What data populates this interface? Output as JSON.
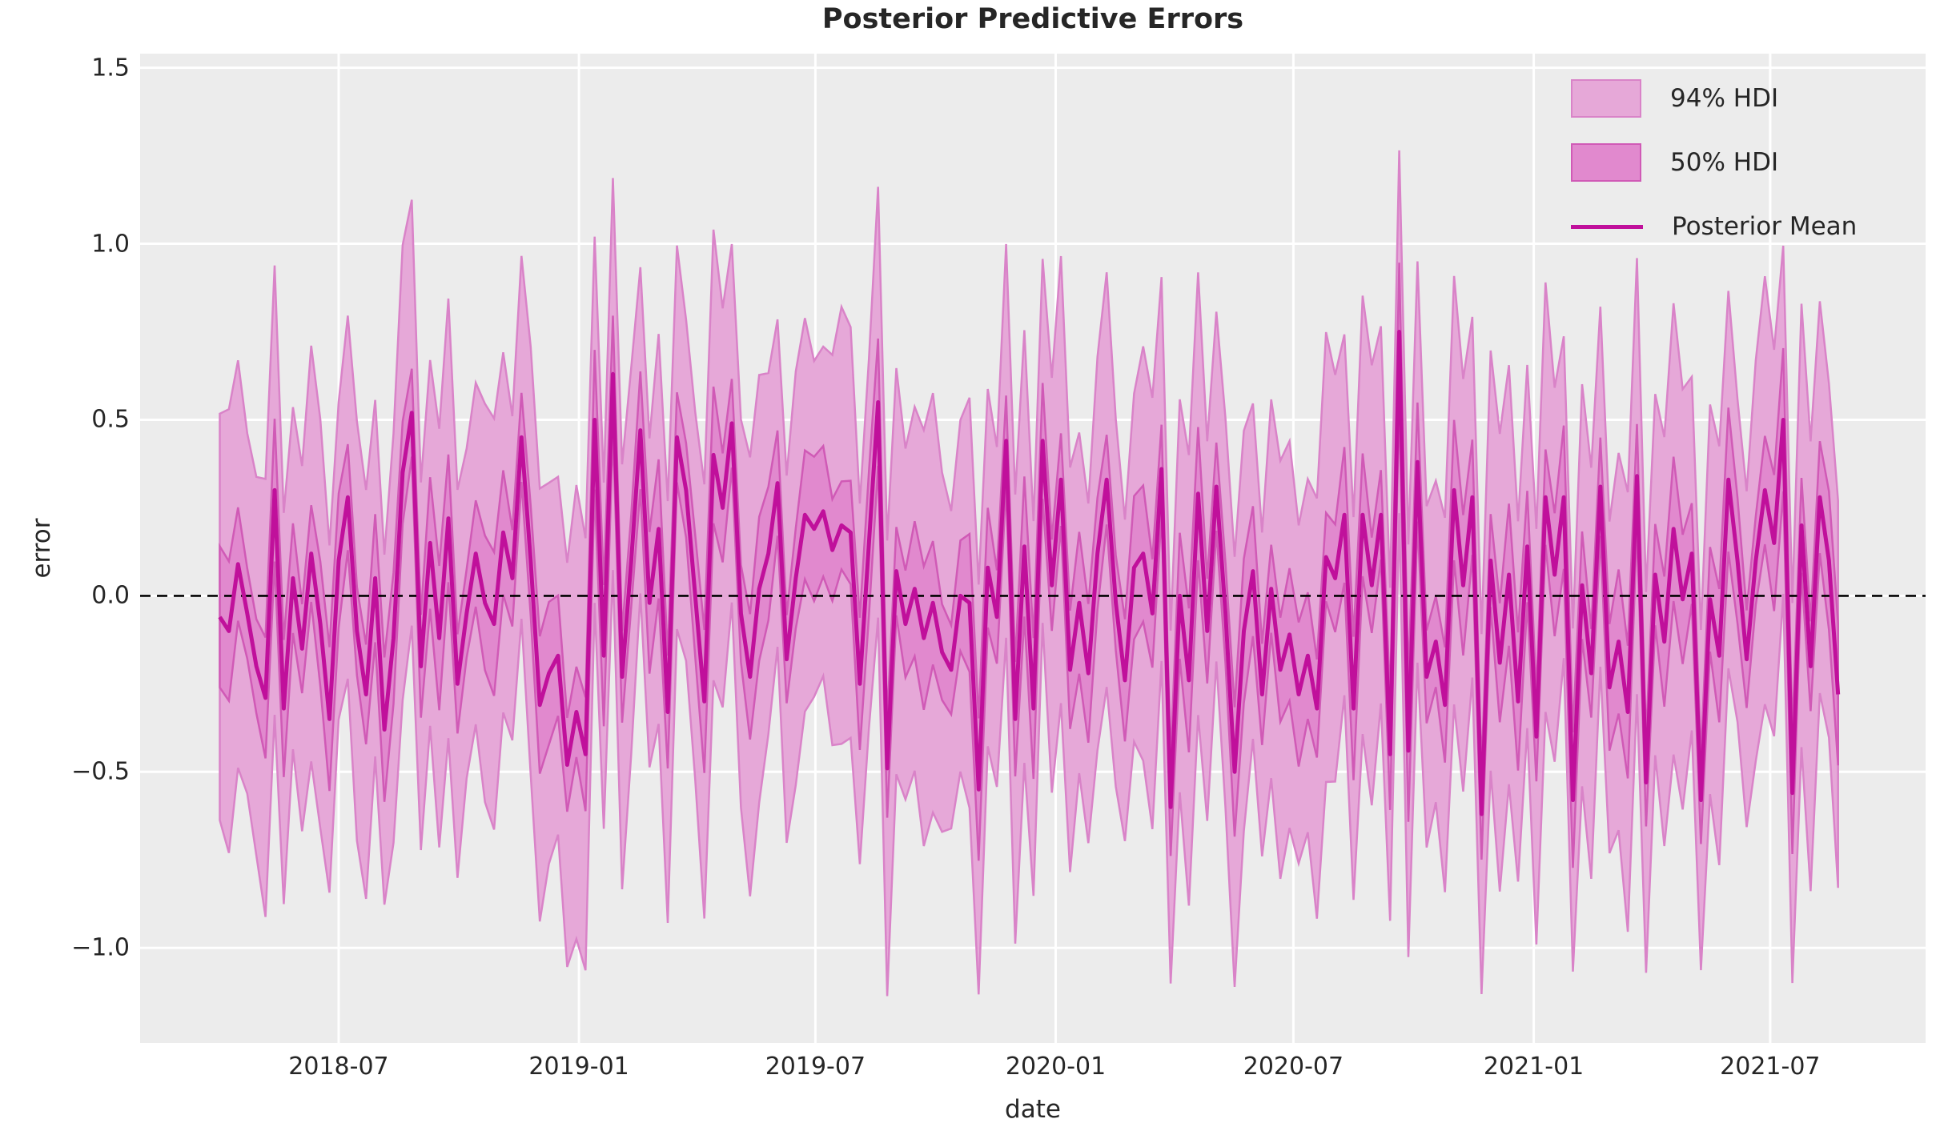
{
  "figure": {
    "title": "Posterior Predictive Errors",
    "xlabel": "date",
    "ylabel": "error"
  },
  "legend": {
    "hdi94_label": "94% HDI",
    "hdi50_label": "50% HDI",
    "mean_label": "Posterior Mean"
  },
  "chart_data": {
    "type": "line",
    "title": "Posterior Predictive Errors",
    "xlabel": "date",
    "ylabel": "error",
    "grid": true,
    "legend_position": "upper right",
    "legend_entries": [
      "94% HDI",
      "50% HDI",
      "Posterior Mean"
    ],
    "x_start_date": "2018-04-01",
    "x_freq_days": 7,
    "xlim": [
      "2018-01-30",
      "2021-10-28"
    ],
    "ylim": [
      -1.27,
      1.54
    ],
    "yticks": [
      {
        "value": 1.5,
        "label": "1.5"
      },
      {
        "value": 1.0,
        "label": "1.0"
      },
      {
        "value": 0.5,
        "label": "0.5"
      },
      {
        "value": 0.0,
        "label": "0.0"
      },
      {
        "value": -0.5,
        "label": "−0.5"
      },
      {
        "value": -1.0,
        "label": "−1.0"
      }
    ],
    "xticks": [
      {
        "date": "2018-07-01",
        "label": "2018-07"
      },
      {
        "date": "2019-01-01",
        "label": "2019-01"
      },
      {
        "date": "2019-07-01",
        "label": "2019-07"
      },
      {
        "date": "2020-01-01",
        "label": "2020-01"
      },
      {
        "date": "2020-07-01",
        "label": "2020-07"
      },
      {
        "date": "2021-01-01",
        "label": "2021-01"
      },
      {
        "date": "2021-07-01",
        "label": "2021-07"
      }
    ],
    "zero_line": {
      "value": 0.0,
      "style": "dashed",
      "color": "#000000"
    },
    "series": [
      {
        "name": "Posterior Mean",
        "values": [
          -0.06,
          -0.1,
          0.09,
          -0.05,
          -0.2,
          -0.29,
          0.3,
          -0.32,
          0.05,
          -0.15,
          0.12,
          -0.08,
          -0.35,
          0.1,
          0.28,
          -0.1,
          -0.28,
          0.05,
          -0.38,
          -0.12,
          0.35,
          0.52,
          -0.2,
          0.15,
          -0.12,
          0.22,
          -0.25,
          -0.05,
          0.12,
          -0.02,
          -0.08,
          0.18,
          0.05,
          0.45,
          0.1,
          -0.31,
          -0.22,
          -0.17,
          -0.48,
          -0.33,
          -0.45,
          0.5,
          -0.17,
          0.63,
          -0.23,
          0.1,
          0.47,
          -0.02,
          0.19,
          -0.33,
          0.45,
          0.3,
          0.0,
          -0.3,
          0.4,
          0.25,
          0.49,
          -0.05,
          -0.23,
          0.02,
          0.12,
          0.32,
          -0.18,
          0.05,
          0.23,
          0.19,
          0.24,
          0.13,
          0.2,
          0.18,
          -0.25,
          0.15,
          0.55,
          -0.49,
          0.07,
          -0.08,
          0.02,
          -0.12,
          -0.02,
          -0.16,
          -0.21,
          0.0,
          -0.02,
          -0.55,
          0.08,
          -0.06,
          0.44,
          -0.35,
          0.14,
          -0.32,
          0.44,
          0.03,
          0.33,
          -0.21,
          -0.02,
          -0.22,
          0.12,
          0.33,
          -0.02,
          -0.24,
          0.08,
          0.12,
          -0.05,
          0.36,
          -0.6,
          0.0,
          -0.24,
          0.29,
          -0.1,
          0.31,
          -0.05,
          -0.5,
          -0.1,
          0.07,
          -0.28,
          0.02,
          -0.21,
          -0.11,
          -0.28,
          -0.17,
          -0.32,
          0.11,
          0.05,
          0.23,
          -0.32,
          0.23,
          0.03,
          0.23,
          -0.45,
          0.75,
          -0.44,
          0.38,
          -0.23,
          -0.13,
          -0.31,
          0.3,
          0.03,
          0.28,
          -0.62,
          0.1,
          -0.19,
          0.06,
          -0.3,
          0.14,
          -0.4,
          0.28,
          0.06,
          0.28,
          -0.58,
          0.03,
          -0.22,
          0.31,
          -0.26,
          -0.13,
          -0.33,
          0.34,
          -0.53,
          0.06,
          -0.13,
          0.19,
          -0.01,
          0.12,
          -0.58,
          -0.01,
          -0.17,
          0.33,
          0.1,
          -0.18,
          0.1,
          0.3,
          0.15,
          0.5,
          -0.56,
          0.2,
          -0.2,
          0.28,
          0.1,
          -0.28
        ]
      }
    ],
    "hdi94_halfwidth": 0.55,
    "hdi94_wobble": 0.07,
    "hdi50_halfwidth": 0.165,
    "hdi50_wobble": 0.04,
    "colors": {
      "axes_bg": "#ececec",
      "figure_bg": "#ffffff",
      "grid": "#ffffff",
      "text": "#262626",
      "mean_line": "#c0109b",
      "band94_fill": "#e6a8d8",
      "band94_edge": "#d983c8",
      "band50_fill": "#e189ce",
      "band50_edge": "#d05ab6",
      "zero_line": "#000000"
    }
  }
}
